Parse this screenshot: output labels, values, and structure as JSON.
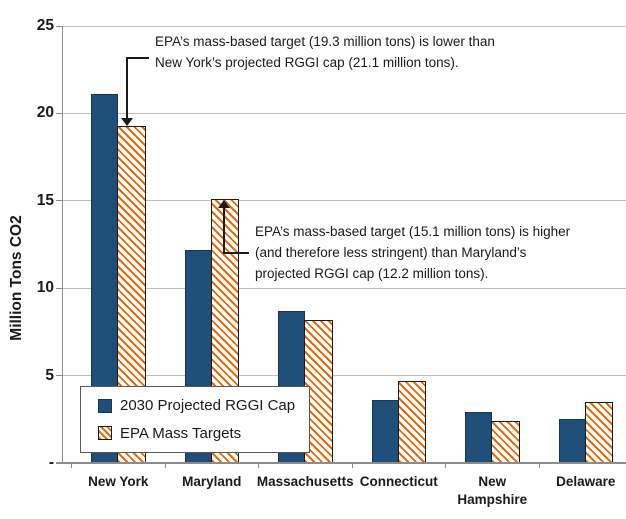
{
  "chart_data": {
    "type": "bar",
    "title": "",
    "categories": [
      "New York",
      "Maryland",
      "Massachusetts",
      "Connecticut",
      "New Hampshire",
      "Delaware"
    ],
    "series": [
      {
        "name": "2030 Projected RGGI Cap",
        "style": "solid",
        "color": "#1F4E79",
        "values": [
          21.1,
          12.2,
          8.7,
          3.6,
          2.9,
          2.5
        ]
      },
      {
        "name": "EPA Mass Targets",
        "style": "hatched",
        "hatch_color": "#E36C0A",
        "fill": "#FFFFFF",
        "values": [
          19.3,
          15.1,
          8.2,
          4.7,
          2.4,
          3.5
        ]
      }
    ],
    "xlabel": "",
    "ylabel": "Million Tons CO2",
    "ylim": [
      0,
      25
    ],
    "ytick_values": [
      0,
      5,
      10,
      15,
      20,
      25
    ],
    "ytick_labels": [
      "-",
      "5",
      "10",
      "15",
      "20",
      "25"
    ],
    "grid": "horizontal",
    "legend_position": "bottom-left-overlay"
  },
  "annotations": [
    {
      "arrow": "down",
      "points_to": "New York EPA Mass Target bar",
      "text": "EPA’s mass-based target (19.3 million tons) is lower than\nNew York’s projected RGGI cap (21.1 million tons)."
    },
    {
      "arrow": "up",
      "points_to": "Maryland EPA Mass Target bar",
      "text": "EPA’s mass-based target (15.1 million tons) is higher\n(and therefore less stringent) than Maryland’s\nprojected RGGI cap (12.2 million tons)."
    }
  ],
  "colors": {
    "rggi_cap_bar": "#1F4E79",
    "epa_target_hatch": "#E36C0A",
    "gridline": "#BFBFBF",
    "axis": "#8C8C8C",
    "text": "#1A1A1A"
  }
}
